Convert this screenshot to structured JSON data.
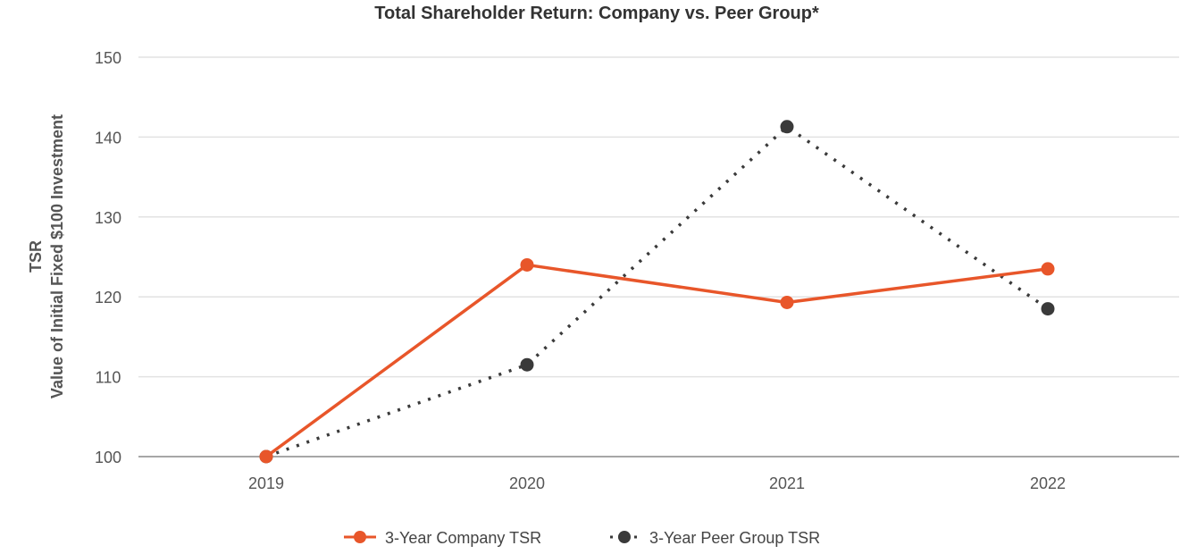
{
  "chart_data": {
    "type": "line",
    "title": "Total Shareholder Return: Company vs. Peer Group*",
    "ylabel_line1": "TSR",
    "ylabel_line2": "Value of Initial Fixed $100 Investment",
    "xlabel": "",
    "categories": [
      "2019",
      "2020",
      "2021",
      "2022"
    ],
    "ylim": [
      100,
      150
    ],
    "yticks": [
      100,
      110,
      120,
      130,
      140,
      150
    ],
    "grid": true,
    "legend_position": "bottom-center",
    "series": [
      {
        "name": "3-Year Company TSR",
        "values": [
          100,
          124,
          119.3,
          123.5
        ],
        "color": "#E8562A",
        "style": "solid"
      },
      {
        "name": "3-Year Peer Group TSR",
        "values": [
          100,
          111.5,
          141.3,
          118.5
        ],
        "color": "#3A3A3A",
        "style": "dotted"
      }
    ]
  }
}
